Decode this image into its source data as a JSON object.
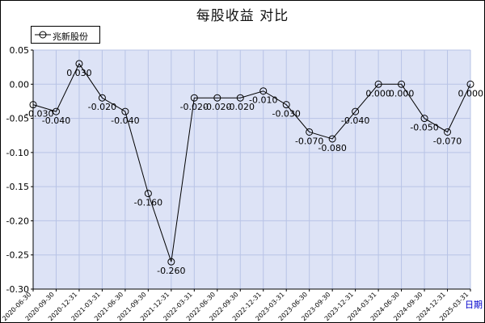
{
  "chart_data": {
    "type": "line",
    "title": "每股收益 对比",
    "categories": [
      "2020-06-30",
      "2020-09-30",
      "2020-12-31",
      "2021-03-31",
      "2021-06-30",
      "2021-09-30",
      "2021-12-31",
      "2022-03-31",
      "2022-06-30",
      "2022-09-30",
      "2022-12-31",
      "2023-03-31",
      "2023-06-30",
      "2023-09-30",
      "2023-12-31",
      "2024-03-31",
      "2024-06-30",
      "2024-09-30",
      "2024-12-31",
      "2025-03-31"
    ],
    "series": [
      {
        "name": "兆新股份",
        "values": [
          -0.03,
          -0.04,
          0.03,
          -0.02,
          -0.04,
          -0.16,
          -0.26,
          -0.02,
          -0.02,
          -0.02,
          -0.01,
          -0.03,
          -0.07,
          -0.08,
          -0.04,
          0.0,
          0.0,
          -0.05,
          -0.07,
          0.0
        ],
        "labels": [
          "-0.030",
          "-0.040",
          "0.030",
          "-0.020",
          "-0.040",
          "-0.160",
          "-0.260",
          "-0.020",
          "-0.020",
          "-0.020",
          "-0.010",
          "-0.030",
          "-0.070",
          "-0.080",
          "-0.040",
          "0.000",
          "0.000",
          "-0.050",
          "-0.070",
          "0.000"
        ],
        "color": "#000000"
      }
    ],
    "y_ticks": [
      "0.05",
      "0.00",
      "-0.05",
      "-0.10",
      "-0.15",
      "-0.20",
      "-0.25",
      "-0.30"
    ],
    "ylim": [
      -0.3,
      0.05
    ],
    "grid": true,
    "legend": "top-left",
    "plot_background": "#dde3f6",
    "grid_color": "#b8c3e6"
  },
  "period_label": "日期"
}
